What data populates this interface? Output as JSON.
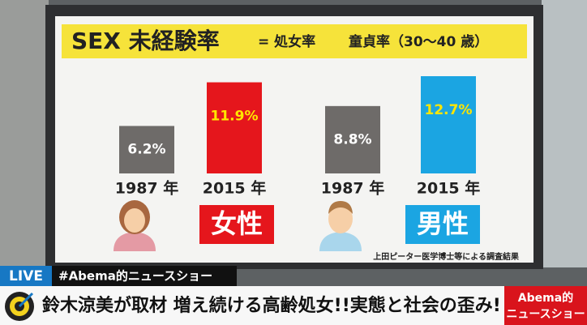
{
  "chart_data": {
    "type": "bar",
    "title": "SEX 未経験率",
    "subtitle_left": "= 処女率",
    "subtitle_right": "童貞率（30〜40 歳）",
    "categories": [
      "1987 年",
      "2015 年",
      "1987 年",
      "2015 年"
    ],
    "values": [
      6.2,
      11.9,
      8.8,
      12.7
    ],
    "value_labels": [
      "6.2%",
      "11.9%",
      "8.8%",
      "12.7%"
    ],
    "colors": [
      "#6e6b69",
      "#e5161c",
      "#6e6b69",
      "#1ba5e2"
    ],
    "label_colors": [
      "#ffffff",
      "#ffe500",
      "#ffffff",
      "#ffe500"
    ],
    "groups": [
      "女性",
      "男性"
    ],
    "group_colors": [
      "#e5161c",
      "#1ba5e2"
    ],
    "source": "上田ピーター医学博士等による調査結果"
  },
  "broadcast": {
    "live": "LIVE",
    "program": "#Abema的ニュースショー",
    "headline": "鈴木涼美が取材 増え続ける高齢処女!!実態と社会の歪み!",
    "logo_top": "Abema的",
    "logo_bottom": "ニュースショー"
  }
}
